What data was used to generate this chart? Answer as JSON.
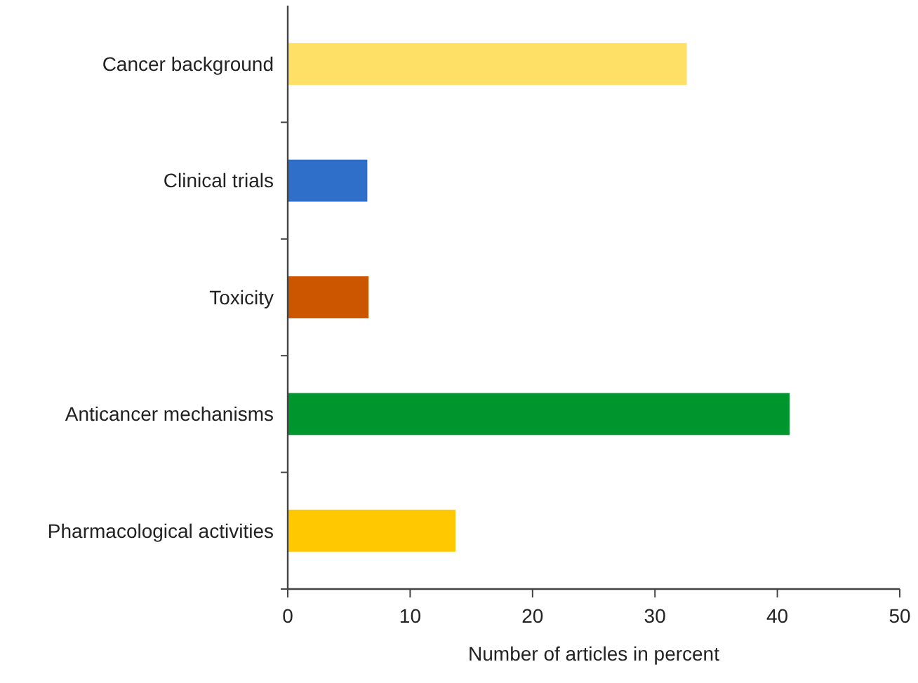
{
  "chart_data": {
    "type": "bar",
    "orientation": "horizontal",
    "xlabel": "Number of articles in percent",
    "categories": [
      "Cancer background",
      "Clinical trials",
      "Toxicity",
      "Anticancer mechanisms",
      "Pharmacological activities"
    ],
    "values": [
      32.6,
      6.5,
      6.6,
      41.0,
      13.7
    ],
    "colors": [
      "#ffe066",
      "#2f6fca",
      "#cc5500",
      "#00962e",
      "#ffc800"
    ],
    "xlim": [
      0,
      50
    ],
    "xticks": [
      0,
      10,
      20,
      30,
      40,
      50
    ]
  }
}
